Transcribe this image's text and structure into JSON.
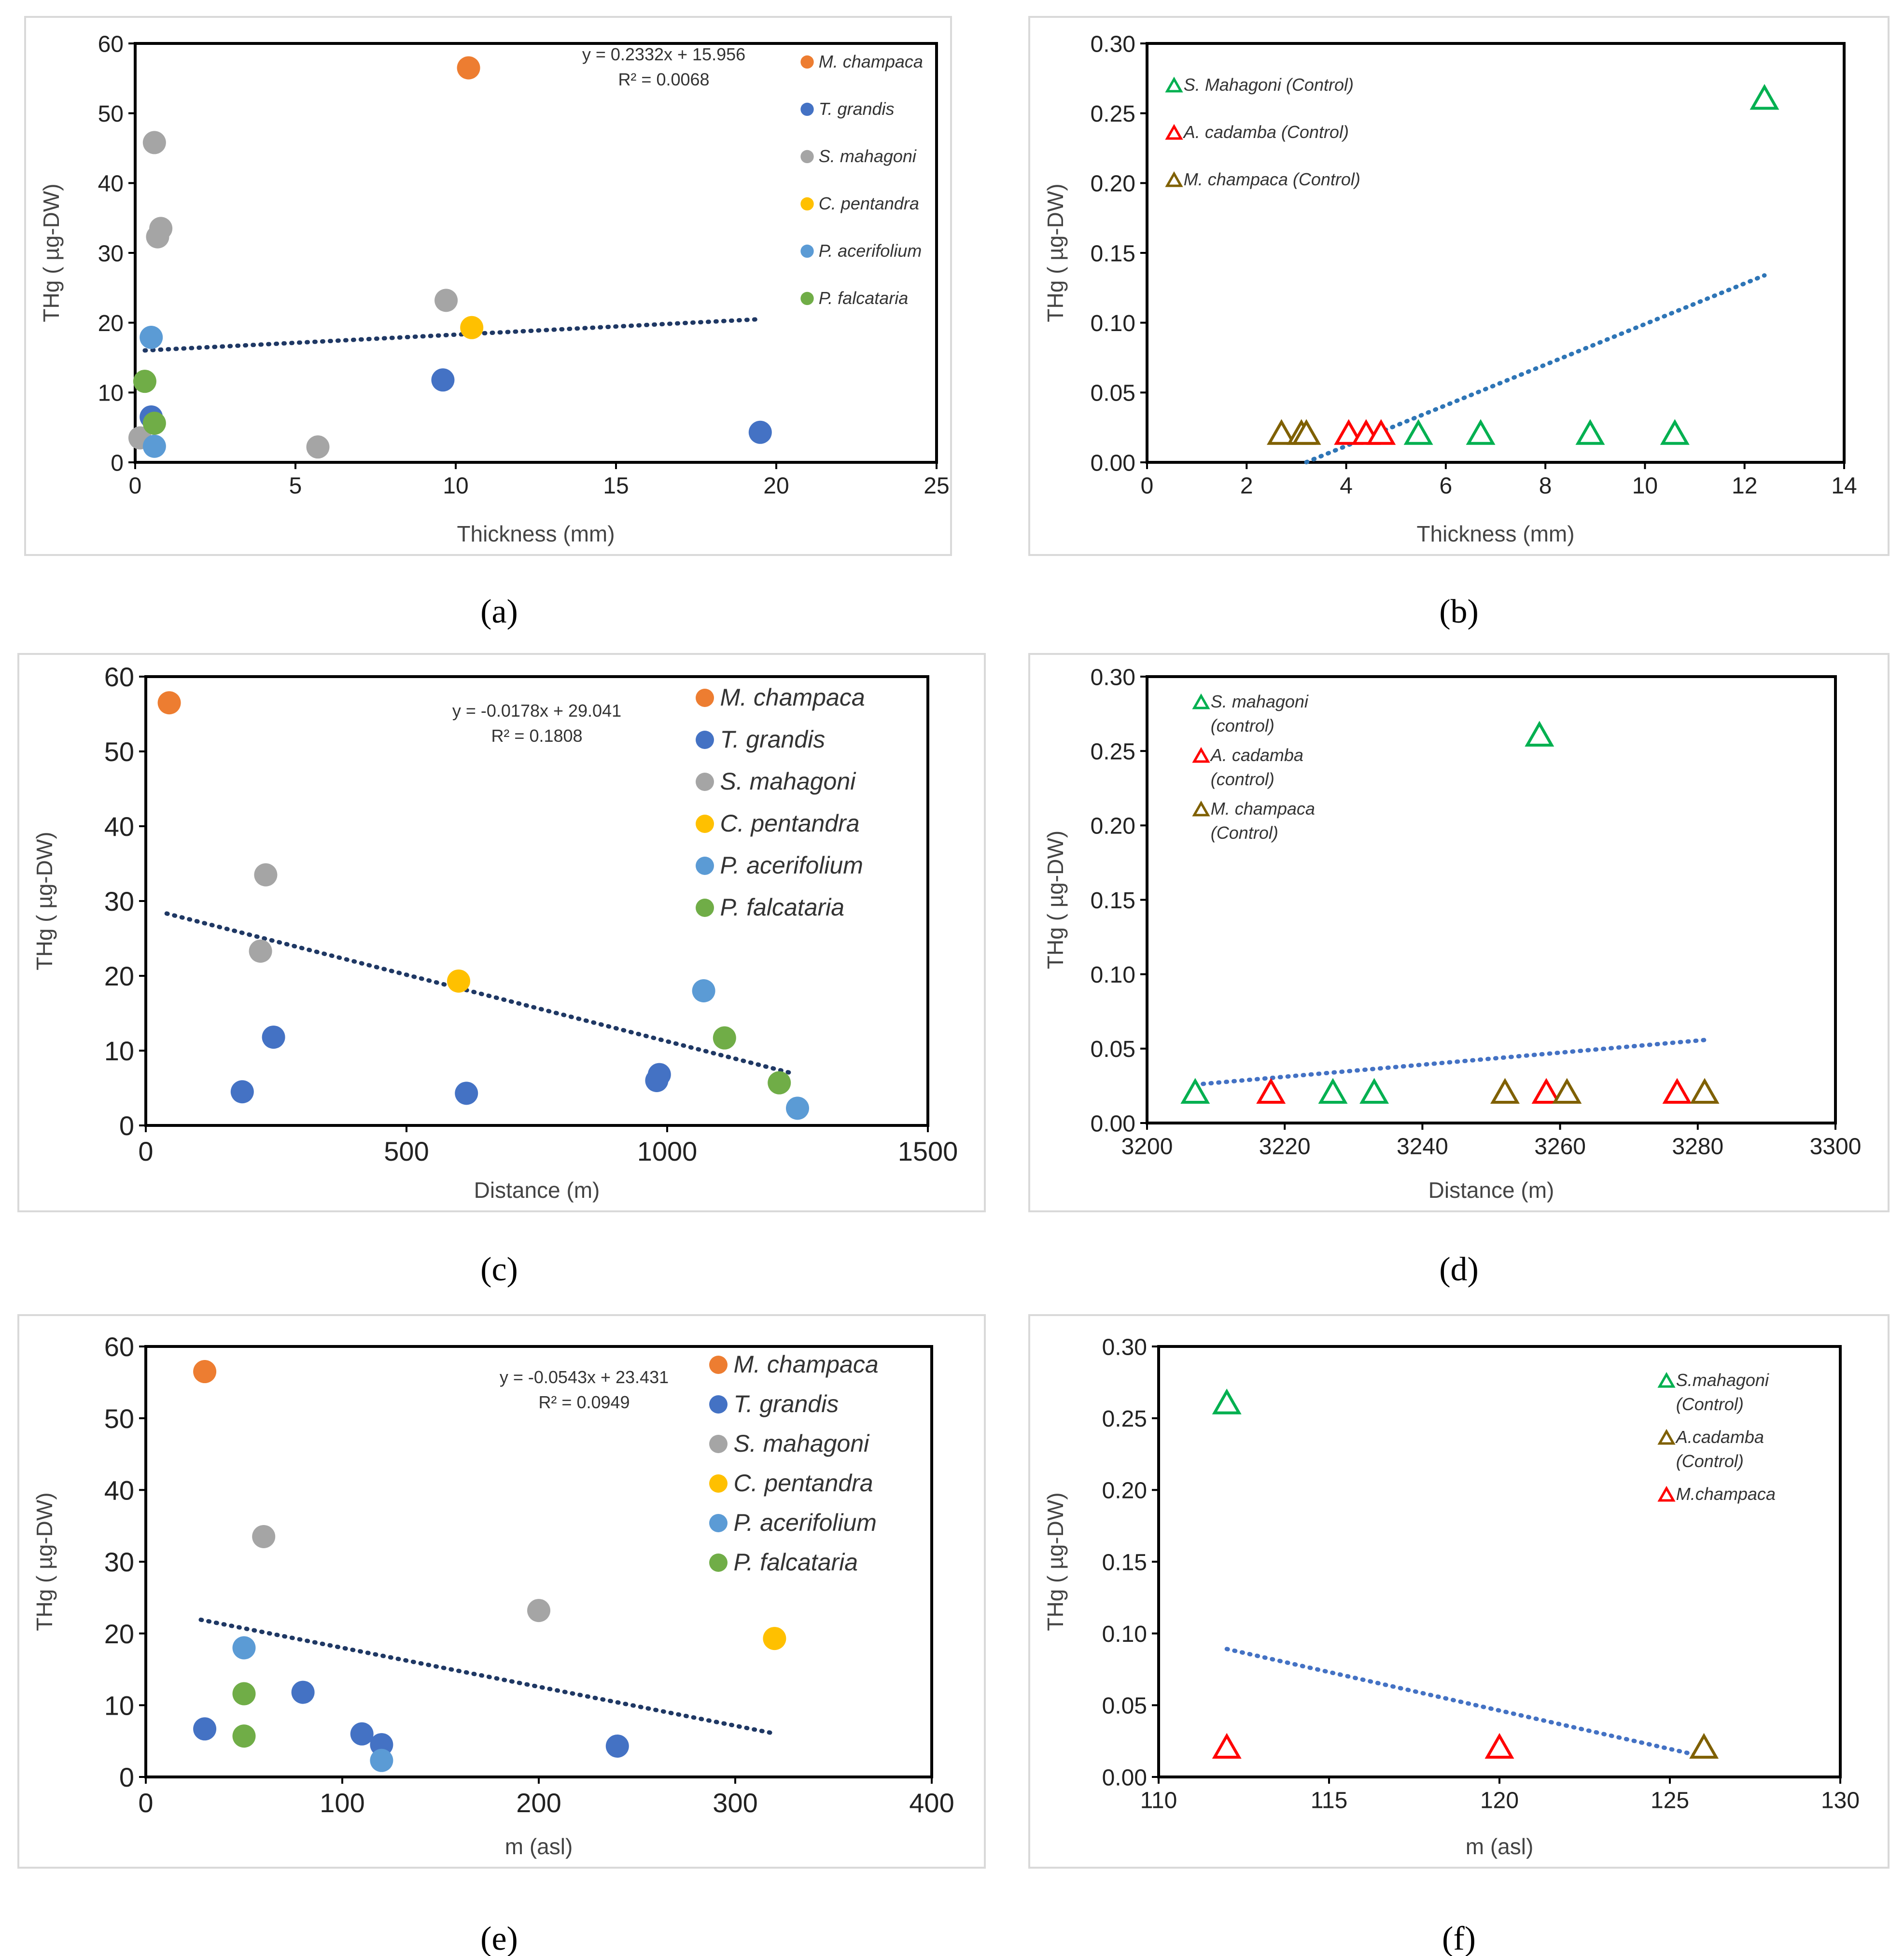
{
  "chart_data": [
    {
      "panel": "a",
      "type": "scatter",
      "xlabel": "Thickness (mm)",
      "ylabel": "THg ( µg-DW)",
      "xlim": [
        0,
        25
      ],
      "ylim": [
        0,
        60
      ],
      "xticks": [
        0,
        5,
        10,
        15,
        20,
        25
      ],
      "yticks": [
        0,
        10,
        20,
        30,
        40,
        50,
        60
      ],
      "tick_decimals": 0,
      "legend_position": "right",
      "legend_size": "small",
      "equation": [
        "y = 0.2332x + 15.956",
        "R² = 0.0068"
      ],
      "trendline": {
        "slope": 0.2332,
        "intercept": 15.956,
        "x_range": [
          0.3,
          19.5
        ],
        "color": "#1F3864"
      },
      "series": [
        {
          "name": [
            "M. champaca"
          ],
          "marker": "circle",
          "color": "#ED7D31",
          "x": [
            10.4
          ],
          "y": [
            56.5
          ]
        },
        {
          "name": [
            "T. grandis"
          ],
          "marker": "circle",
          "color": "#4472C4",
          "x": [
            0.5,
            9.6,
            19.5
          ],
          "y": [
            6.5,
            11.8,
            4.3
          ]
        },
        {
          "name": [
            "S. mahagoni"
          ],
          "marker": "circle",
          "color": "#A5A5A5",
          "x": [
            0.6,
            0.8,
            0.7,
            9.7,
            5.7,
            0.15
          ],
          "y": [
            45.8,
            33.5,
            32.3,
            23.2,
            2.2,
            3.5
          ]
        },
        {
          "name": [
            "C. pentandra"
          ],
          "marker": "circle",
          "color": "#FFC000",
          "x": [
            10.5
          ],
          "y": [
            19.3
          ]
        },
        {
          "name": [
            "P. acerifolium"
          ],
          "marker": "circle",
          "color": "#5B9BD5",
          "x": [
            0.5,
            0.6
          ],
          "y": [
            17.9,
            2.3
          ]
        },
        {
          "name": [
            "P. falcataria"
          ],
          "marker": "circle",
          "color": "#70AD47",
          "x": [
            0.3,
            0.6
          ],
          "y": [
            11.6,
            5.6
          ]
        }
      ]
    },
    {
      "panel": "b",
      "type": "scatter",
      "xlabel": "Thickness (mm)",
      "ylabel": "THg ( µg-DW)",
      "xlim": [
        0,
        14
      ],
      "ylim": [
        0,
        0.3
      ],
      "xticks": [
        0,
        2,
        4,
        6,
        8,
        10,
        12,
        14
      ],
      "yticks": [
        0,
        0.05,
        0.1,
        0.15,
        0.2,
        0.25,
        0.3
      ],
      "tick_decimals": 2,
      "legend_position": "top-left",
      "trendline": {
        "slope": 0.01454,
        "intercept": -0.0464,
        "x_range": [
          3.2,
          12.4
        ],
        "color": "#2E75B6"
      },
      "series": [
        {
          "name": [
            "S. Mahagoni (Control)"
          ],
          "marker": "triangle",
          "color": "#00B050",
          "x": [
            5.45,
            6.7,
            8.9,
            10.6,
            12.4
          ],
          "y": [
            0.02,
            0.02,
            0.02,
            0.02,
            0.26
          ]
        },
        {
          "name": [
            "A. cadamba (Control)"
          ],
          "marker": "triangle",
          "color": "#FF0000",
          "x": [
            4.05,
            4.4,
            4.7
          ],
          "y": [
            0.02,
            0.02,
            0.02
          ]
        },
        {
          "name": [
            "M. champaca (Control)"
          ],
          "marker": "triangle",
          "color": "#7F6000",
          "x": [
            2.7,
            3.1,
            3.2
          ],
          "y": [
            0.02,
            0.02,
            0.02
          ]
        }
      ]
    },
    {
      "panel": "c",
      "type": "scatter",
      "xlabel": "Distance (m)",
      "ylabel": "THg ( µg-DW)",
      "xlim": [
        0,
        1500
      ],
      "ylim": [
        0,
        60
      ],
      "xticks": [
        0,
        500,
        1000,
        1500
      ],
      "yticks": [
        0,
        10,
        20,
        30,
        40,
        50,
        60
      ],
      "tick_decimals": 0,
      "legend_position": "right",
      "legend_size": "large",
      "equation": [
        "y = -0.0178x + 29.041",
        "R² = 0.1808"
      ],
      "trendline": {
        "slope": -0.0178,
        "intercept": 29.041,
        "x_range": [
          40,
          1240
        ],
        "color": "#1F3864"
      },
      "series": [
        {
          "name": [
            "M. champaca"
          ],
          "marker": "circle",
          "color": "#ED7D31",
          "x": [
            45
          ],
          "y": [
            56.5
          ]
        },
        {
          "name": [
            "T. grandis"
          ],
          "marker": "circle",
          "color": "#4472C4",
          "x": [
            185,
            245,
            615,
            985,
            980
          ],
          "y": [
            4.5,
            11.8,
            4.3,
            6.8,
            6.0
          ]
        },
        {
          "name": [
            "S. mahagoni"
          ],
          "marker": "circle",
          "color": "#A5A5A5",
          "x": [
            230,
            220
          ],
          "y": [
            33.5,
            23.3
          ]
        },
        {
          "name": [
            "C. pentandra"
          ],
          "marker": "circle",
          "color": "#FFC000",
          "x": [
            600
          ],
          "y": [
            19.3
          ]
        },
        {
          "name": [
            "P. acerifolium"
          ],
          "marker": "circle",
          "color": "#5B9BD5",
          "x": [
            1070,
            1250
          ],
          "y": [
            18.0,
            2.3
          ]
        },
        {
          "name": [
            "P. falcataria"
          ],
          "marker": "circle",
          "color": "#70AD47",
          "x": [
            1110,
            1215
          ],
          "y": [
            11.7,
            5.7
          ]
        }
      ]
    },
    {
      "panel": "d",
      "type": "scatter",
      "xlabel": "Distance (m)",
      "ylabel": "THg ( µg-DW)",
      "xlim": [
        3200,
        3300
      ],
      "ylim": [
        0,
        0.3
      ],
      "xticks": [
        3200,
        3220,
        3240,
        3260,
        3280,
        3300
      ],
      "yticks": [
        0,
        0.05,
        0.1,
        0.15,
        0.2,
        0.25,
        0.3
      ],
      "tick_decimals": 2,
      "legend_position": "top-left",
      "trendline": {
        "slope": 0.000405,
        "intercept": -1.273,
        "x_range": [
          3207,
          3281
        ],
        "color": "#4472C4"
      },
      "series": [
        {
          "name": [
            "S. mahagoni",
            "(control)"
          ],
          "marker": "triangle",
          "color": "#00B050",
          "x": [
            3207,
            3227,
            3233,
            3257
          ],
          "y": [
            0.02,
            0.02,
            0.02,
            0.26
          ]
        },
        {
          "name": [
            "A. cadamba",
            "(control)"
          ],
          "marker": "triangle",
          "color": "#FF0000",
          "x": [
            3218,
            3258,
            3277
          ],
          "y": [
            0.02,
            0.02,
            0.02
          ]
        },
        {
          "name": [
            "M. champaca",
            "(Control)"
          ],
          "marker": "triangle",
          "color": "#7F6000",
          "x": [
            3252,
            3261,
            3281
          ],
          "y": [
            0.02,
            0.02,
            0.02
          ]
        }
      ]
    },
    {
      "panel": "e",
      "type": "scatter",
      "xlabel": "m (asl)",
      "ylabel": "THg ( µg-DW)",
      "xlim": [
        0,
        400
      ],
      "ylim": [
        0,
        60
      ],
      "xticks": [
        0,
        100,
        200,
        300,
        400
      ],
      "yticks": [
        0,
        10,
        20,
        30,
        40,
        50,
        60
      ],
      "tick_decimals": 0,
      "legend_position": "right",
      "legend_size": "large",
      "equation": [
        "y = -0.0543x + 23.431",
        "R² = 0.0949"
      ],
      "trendline": {
        "slope": -0.0543,
        "intercept": 23.431,
        "x_range": [
          28,
          320
        ],
        "color": "#1F3864"
      },
      "series": [
        {
          "name": [
            "M. champaca"
          ],
          "marker": "circle",
          "color": "#ED7D31",
          "x": [
            30
          ],
          "y": [
            56.5
          ]
        },
        {
          "name": [
            "T. grandis"
          ],
          "marker": "circle",
          "color": "#4472C4",
          "x": [
            30,
            80,
            110,
            120,
            240
          ],
          "y": [
            6.7,
            11.8,
            6.0,
            4.5,
            4.3
          ]
        },
        {
          "name": [
            "S. mahagoni"
          ],
          "marker": "circle",
          "color": "#A5A5A5",
          "x": [
            60,
            200
          ],
          "y": [
            33.5,
            23.2
          ]
        },
        {
          "name": [
            "C. pentandra"
          ],
          "marker": "circle",
          "color": "#FFC000",
          "x": [
            320
          ],
          "y": [
            19.3
          ]
        },
        {
          "name": [
            "P. acerifolium"
          ],
          "marker": "circle",
          "color": "#5B9BD5",
          "x": [
            50,
            120
          ],
          "y": [
            18.0,
            2.3
          ]
        },
        {
          "name": [
            "P. falcataria"
          ],
          "marker": "circle",
          "color": "#70AD47",
          "x": [
            50,
            50
          ],
          "y": [
            11.6,
            5.7
          ]
        }
      ]
    },
    {
      "panel": "f",
      "type": "scatter",
      "xlabel": "m (asl)",
      "ylabel": "THg ( µg-DW)",
      "xlim": [
        110,
        130
      ],
      "ylim": [
        0,
        0.3
      ],
      "xticks": [
        110,
        115,
        120,
        125,
        130
      ],
      "yticks": [
        0,
        0.05,
        0.1,
        0.15,
        0.2,
        0.25,
        0.3
      ],
      "tick_decimals": 2,
      "legend_position": "top-right",
      "trendline": {
        "slope": -0.00536,
        "intercept": 0.6895,
        "x_range": [
          112,
          126
        ],
        "color": "#4472C4"
      },
      "series": [
        {
          "name": [
            "S.mahagoni",
            "(Control)"
          ],
          "marker": "triangle",
          "color": "#00B050",
          "x": [
            112
          ],
          "y": [
            0.26
          ]
        },
        {
          "name": [
            "A.cadamba",
            "(Control)"
          ],
          "marker": "triangle",
          "color": "#7F6000",
          "x": [
            126
          ],
          "y": [
            0.02
          ]
        },
        {
          "name": [
            "M.champaca"
          ],
          "marker": "triangle",
          "color": "#FF0000",
          "x": [
            112,
            120
          ],
          "y": [
            0.02,
            0.02
          ]
        }
      ]
    }
  ],
  "panel_labels": [
    "(a)",
    "(b)",
    "(c)",
    "(d)",
    "(e)",
    "(f)"
  ]
}
